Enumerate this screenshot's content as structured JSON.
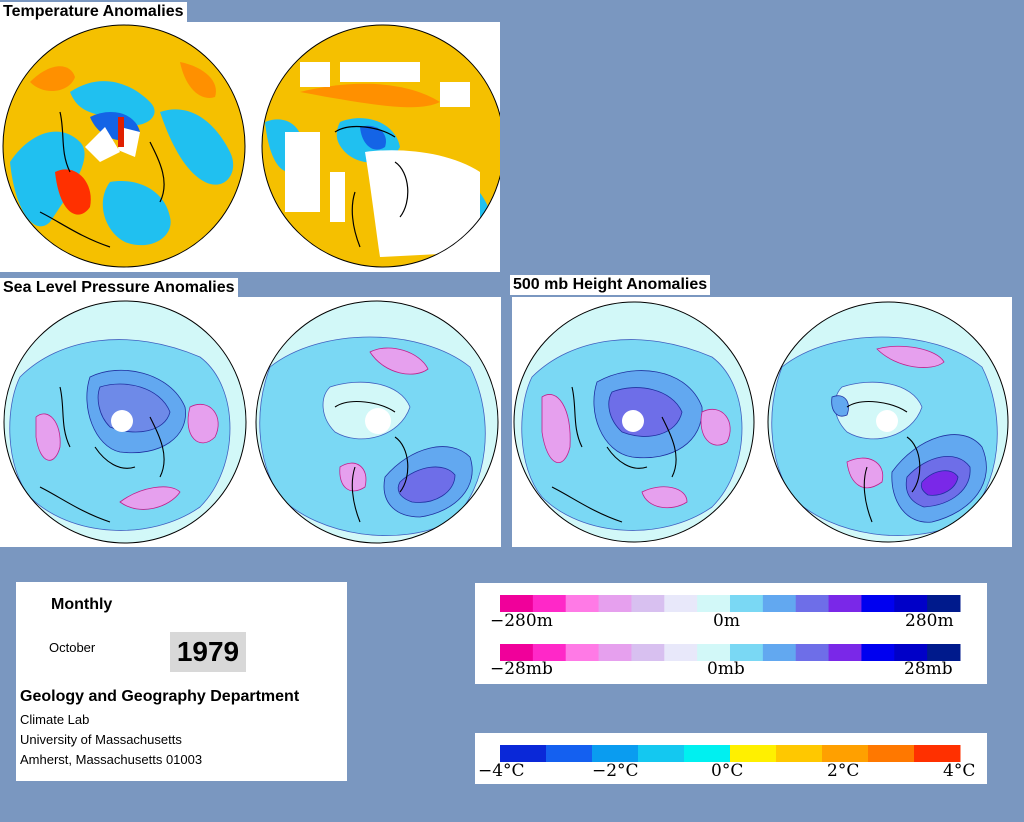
{
  "titles": {
    "temperature": "Temperature Anomalies",
    "slp": "Sea Level Pressure Anomalies",
    "height": "500 mb Height Anomalies"
  },
  "info": {
    "period": "Monthly",
    "month": "October",
    "year": "1979",
    "department": "Geology and Geography Department",
    "lab": "Climate Lab",
    "university": "University of Massachusetts",
    "address": "Amherst, Massachusetts 01003"
  },
  "height_scale": {
    "left": "−280m",
    "mid": "0m",
    "right": "280m"
  },
  "pressure_scale": {
    "left": "−28mb",
    "mid": "0mb",
    "right": "28mb"
  },
  "temp_scale": {
    "l1": "−4°C",
    "l2": "−2°C",
    "mid": "0°C",
    "r1": "2°C",
    "r2": "4°C"
  },
  "colors": {
    "anom_scale": [
      "#f0009a",
      "#ff28c8",
      "#ff7ae6",
      "#e6a0ee",
      "#d8c0f0",
      "#e8e8fa",
      "#d2f8f8",
      "#7ad8f4",
      "#62a8f0",
      "#6e6ee8",
      "#7a28e8",
      "#0000f0",
      "#0000c8",
      "#001a8c"
    ],
    "temp_scale": [
      "#0a28d8",
      "#1460f0",
      "#0a9cf0",
      "#14c8f0",
      "#00f0f0",
      "#fff000",
      "#ffc800",
      "#ffa000",
      "#ff7800",
      "#ff3000"
    ]
  }
}
